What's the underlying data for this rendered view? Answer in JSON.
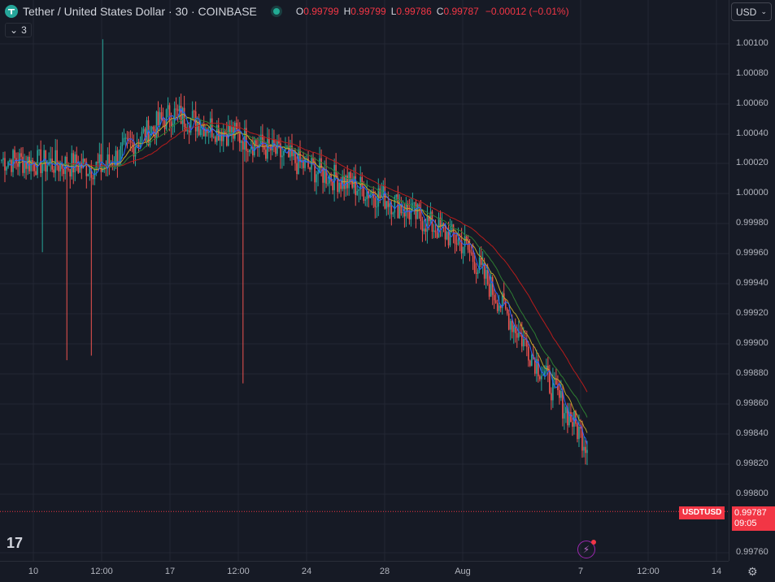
{
  "header": {
    "title": "Tether / United States Dollar · 30 · COINBASE",
    "ohlc": [
      {
        "k": "O",
        "v": "0.99799"
      },
      {
        "k": "H",
        "v": "0.99799"
      },
      {
        "k": "L",
        "v": "0.99786"
      },
      {
        "k": "C",
        "v": "0.99787"
      }
    ],
    "change": "−0.00012 (−0.01%)"
  },
  "indicators_toggle": {
    "count": "3"
  },
  "currency": {
    "label": "USD"
  },
  "price_axis": [
    "1.00100",
    "1.00080",
    "1.00060",
    "1.00040",
    "1.00020",
    "1.00000",
    "0.99980",
    "0.99960",
    "0.99940",
    "0.99920",
    "0.99900",
    "0.99880",
    "0.99860",
    "0.99840",
    "0.99820",
    "0.99800",
    "0.99760"
  ],
  "time_axis": [
    "10",
    "12:00",
    "17",
    "12:00",
    "24",
    "28",
    "Aug",
    "7",
    "12:00",
    "14"
  ],
  "last_price": {
    "symbol": "USDTUSD",
    "price": "0.99787",
    "countdown": "09:05"
  },
  "colors": {
    "up": "#26a69a",
    "down": "#ef5350",
    "ma_fast": "#2962ff",
    "ma_mid": "#c0a62a",
    "ma_slow": "#b71c1c",
    "ma_green": "#2e7d32"
  },
  "chart_data": {
    "type": "candlestick",
    "symbol": "USDTUSD",
    "interval": "30",
    "x": [
      "10",
      "12:00",
      "17",
      "12:00",
      "24",
      "28",
      "Aug",
      "7"
    ],
    "series": [
      {
        "values": [
          1.00015,
          1.0001,
          1.00045,
          1.0003,
          1.0001,
          0.9999,
          0.9996,
          0.9983
        ]
      }
    ],
    "ylim": [
      0.99755,
      1.0011
    ]
  }
}
